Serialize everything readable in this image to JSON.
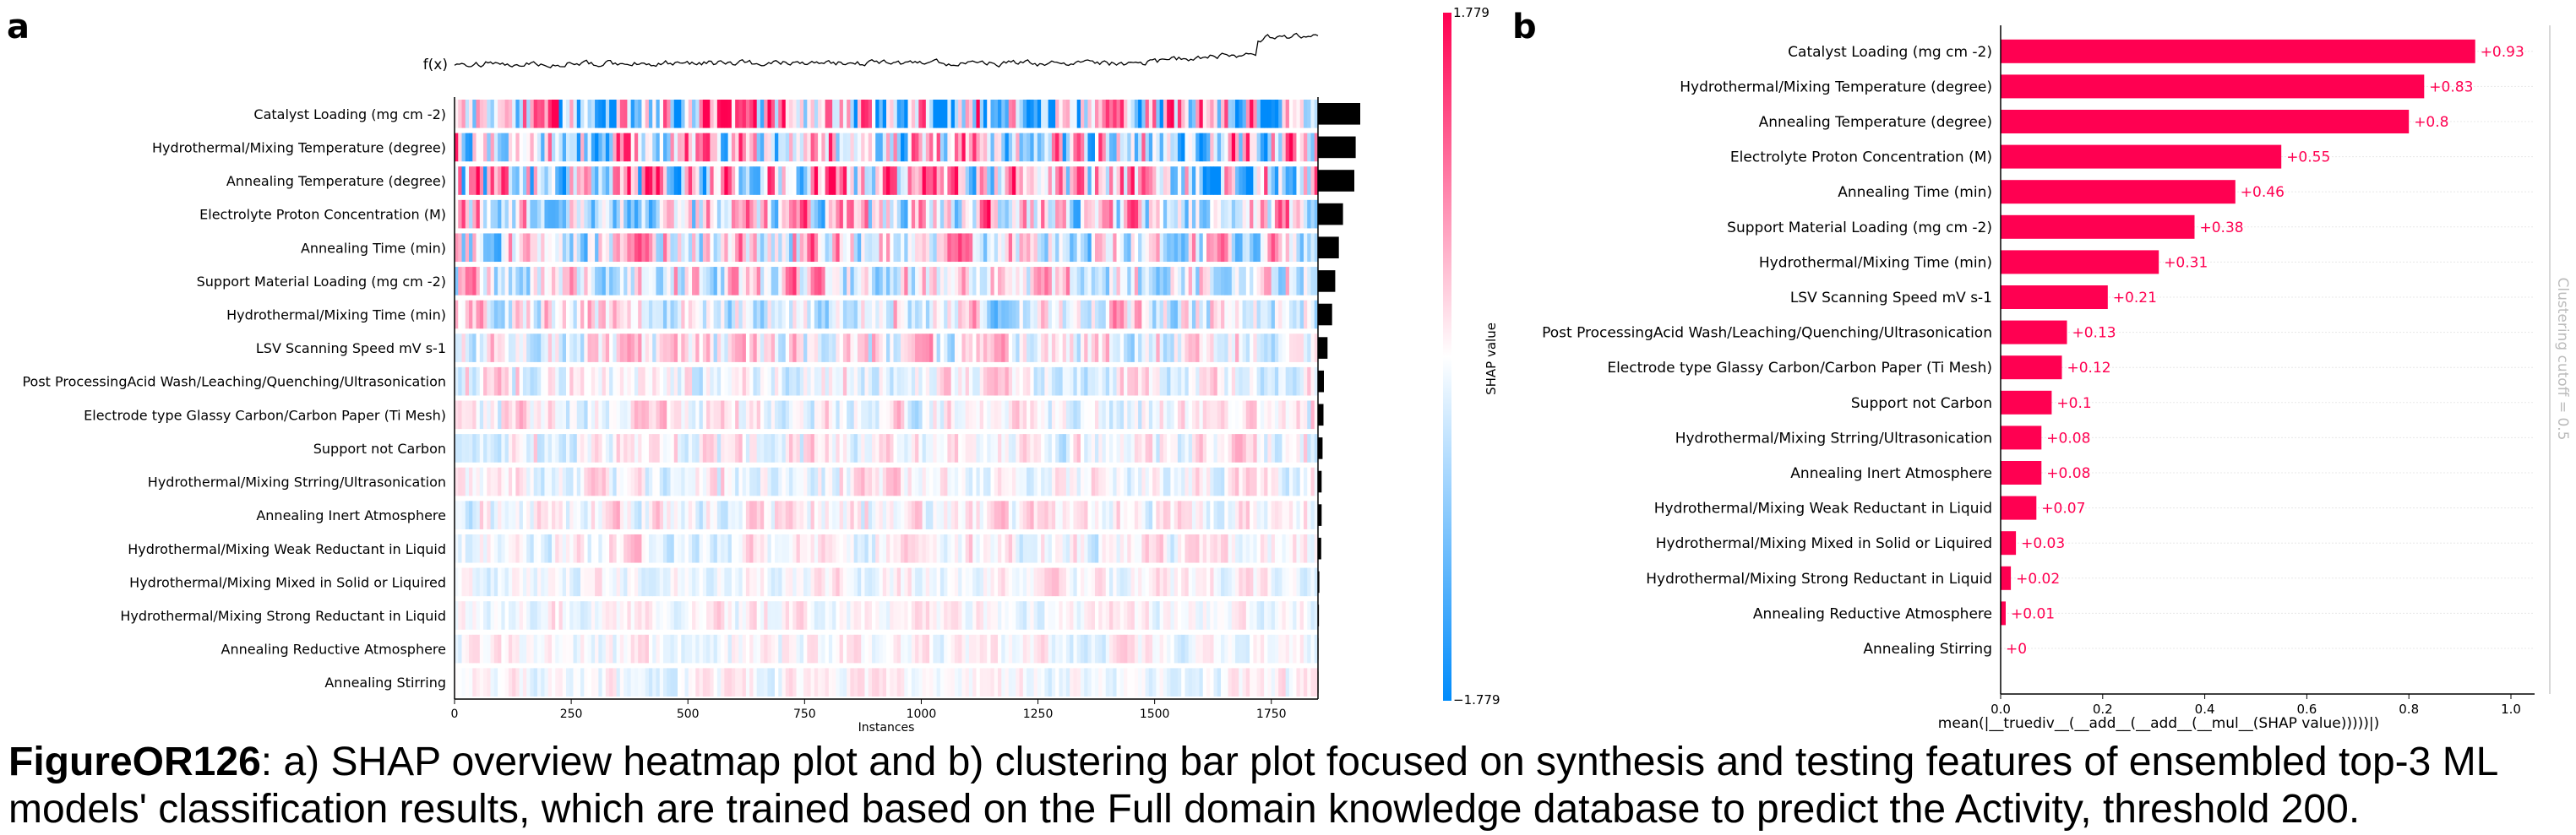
{
  "panel_a_letter": "a",
  "panel_b_letter": "b",
  "caption": {
    "label": "FigureOR126",
    "text": ": a) SHAP overview heatmap plot and b) clustering bar plot focused on synthesis and testing features of ensembled top-3 ML models' classification results, which are trained based on the Full domain knowledge database to predict the Activity, threshold 200."
  },
  "chart_data": [
    {
      "type": "heatmap",
      "fx_label": "f(x)",
      "xlabel": "Instances",
      "xlim": [
        0,
        1850
      ],
      "xticks": [
        0,
        250,
        500,
        750,
        1000,
        1250,
        1500,
        1750
      ],
      "colorbar": {
        "label": "SHAP value",
        "max_label": "1.779",
        "min_label": "−1.779",
        "max": 1.779,
        "min": -1.779,
        "colors": {
          "positive": "#ff0051",
          "neutral": "#ffffff",
          "negative": "#008bfb"
        }
      },
      "features": [
        "Catalyst Loading (mg cm -2)",
        "Hydrothermal/Mixing Temperature (degree)",
        "Annealing Temperature (degree)",
        "Electrolyte Proton Concentration (M)",
        "Annealing Time (min)",
        "Support Material Loading (mg cm -2)",
        "Hydrothermal/Mixing Time (min)",
        "LSV Scanning Speed mV s-1",
        "Post ProcessingAcid Wash/Leaching/Quenching/Ultrasonication",
        "Electrode type Glassy Carbon/Carbon Paper (Ti Mesh)",
        "Support not Carbon",
        "Hydrothermal/Mixing Strring/Ultrasonication",
        "Annealing Inert Atmosphere",
        "Hydrothermal/Mixing Weak Reductant in Liquid",
        "Hydrothermal/Mixing Mixed in Solid or Liquired",
        "Hydrothermal/Mixing Strong Reductant in Liquid",
        "Annealing Reductive Atmosphere",
        "Annealing Stirring"
      ],
      "feature_importance": [
        0.93,
        0.83,
        0.8,
        0.55,
        0.46,
        0.38,
        0.31,
        0.21,
        0.13,
        0.12,
        0.1,
        0.08,
        0.08,
        0.07,
        0.03,
        0.02,
        0.01,
        0.0
      ]
    },
    {
      "type": "bar",
      "orientation": "horizontal",
      "xlabel": "mean(|__truediv__(__add__(__add__(__mul__(SHAP value)))))|)",
      "xlim": [
        0,
        1.0
      ],
      "xticks": [
        "0.0",
        "0.2",
        "0.4",
        "0.6",
        "0.8",
        "1.0"
      ],
      "side_label": "Clustering cutoff = 0.5",
      "bar_color": "#ff0051",
      "categories": [
        "Catalyst Loading (mg cm -2)",
        "Hydrothermal/Mixing Temperature (degree)",
        "Annealing Temperature (degree)",
        "Electrolyte Proton Concentration (M)",
        "Annealing Time (min)",
        "Support Material Loading (mg cm -2)",
        "Hydrothermal/Mixing Time (min)",
        "LSV Scanning Speed mV s-1",
        "Post ProcessingAcid Wash/Leaching/Quenching/Ultrasonication",
        "Electrode type Glassy Carbon/Carbon Paper (Ti Mesh)",
        "Support not Carbon",
        "Hydrothermal/Mixing Strring/Ultrasonication",
        "Annealing Inert Atmosphere",
        "Hydrothermal/Mixing Weak Reductant in Liquid",
        "Hydrothermal/Mixing Mixed in Solid or Liquired",
        "Hydrothermal/Mixing Strong Reductant in Liquid",
        "Annealing Reductive Atmosphere",
        "Annealing Stirring"
      ],
      "values": [
        0.93,
        0.83,
        0.8,
        0.55,
        0.46,
        0.38,
        0.31,
        0.21,
        0.13,
        0.12,
        0.1,
        0.08,
        0.08,
        0.07,
        0.03,
        0.02,
        0.01,
        0.0
      ],
      "value_labels": [
        "+0.93",
        "+0.83",
        "+0.8",
        "+0.55",
        "+0.46",
        "+0.38",
        "+0.31",
        "+0.21",
        "+0.13",
        "+0.12",
        "+0.1",
        "+0.08",
        "+0.08",
        "+0.07",
        "+0.03",
        "+0.02",
        "+0.01",
        "+0"
      ]
    }
  ]
}
